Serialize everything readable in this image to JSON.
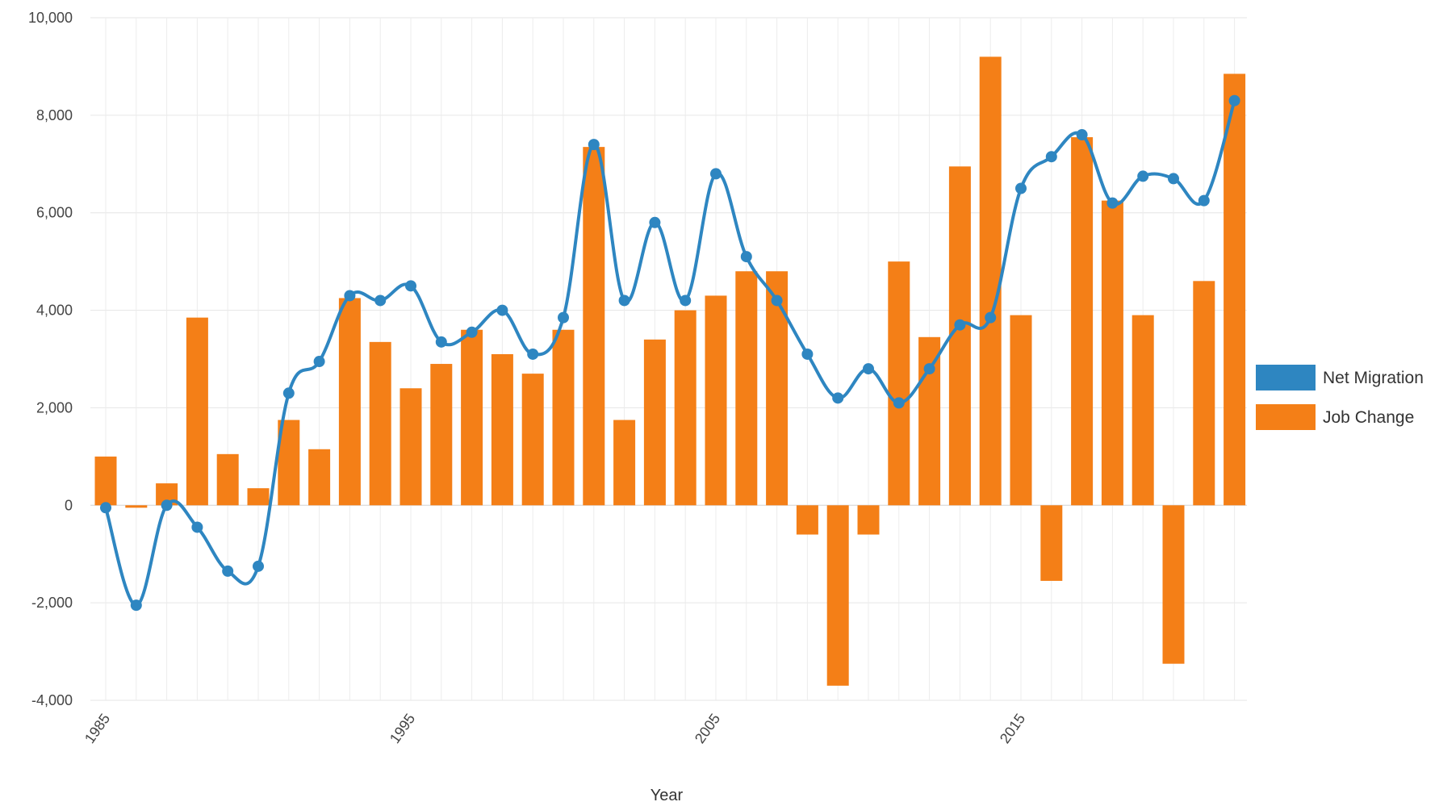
{
  "chart_data": {
    "type": "bar",
    "title": "",
    "xlabel": "Year",
    "ylabel": "",
    "ylim": [
      -4000,
      10000
    ],
    "y_ticks": [
      "-4,000",
      "-2,000",
      "0",
      "2,000",
      "4,000",
      "6,000",
      "8,000",
      "10,000"
    ],
    "x_ticks": [
      "1985",
      "1995",
      "2005",
      "2015"
    ],
    "grid": true,
    "legend_position": "right",
    "x": [
      1985,
      1986,
      1987,
      1988,
      1989,
      1990,
      1991,
      1992,
      1993,
      1994,
      1995,
      1996,
      1997,
      1998,
      1999,
      2000,
      2001,
      2002,
      2003,
      2004,
      2005,
      2006,
      2007,
      2008,
      2009,
      2010,
      2011,
      2012,
      2013,
      2014,
      2015,
      2016,
      2017,
      2018,
      2019,
      2020,
      2021,
      2022
    ],
    "series": [
      {
        "name": "Net Migration",
        "type": "line",
        "color": "#2e86c1",
        "values": [
          -50,
          -2050,
          0,
          -450,
          -1350,
          -1250,
          2300,
          2950,
          4300,
          4200,
          4500,
          3350,
          3550,
          4000,
          3100,
          3850,
          7400,
          4200,
          5800,
          4200,
          6800,
          5100,
          4200,
          3100,
          2200,
          2800,
          2100,
          2800,
          3700,
          3850,
          6500,
          7150,
          7600,
          6200,
          6750,
          6700,
          6250,
          8300
        ]
      },
      {
        "name": "Job Change",
        "type": "bar",
        "color": "#f47f17",
        "values": [
          1000,
          -50,
          450,
          3850,
          1050,
          350,
          1750,
          1150,
          4250,
          3350,
          2400,
          2900,
          3600,
          3100,
          2700,
          3600,
          7350,
          1750,
          3400,
          4000,
          4300,
          4800,
          4800,
          -600,
          -3700,
          -600,
          5000,
          3450,
          6950,
          9200,
          3900,
          -1550,
          7550,
          6250,
          3900,
          -3250,
          4600,
          8850
        ]
      }
    ]
  }
}
